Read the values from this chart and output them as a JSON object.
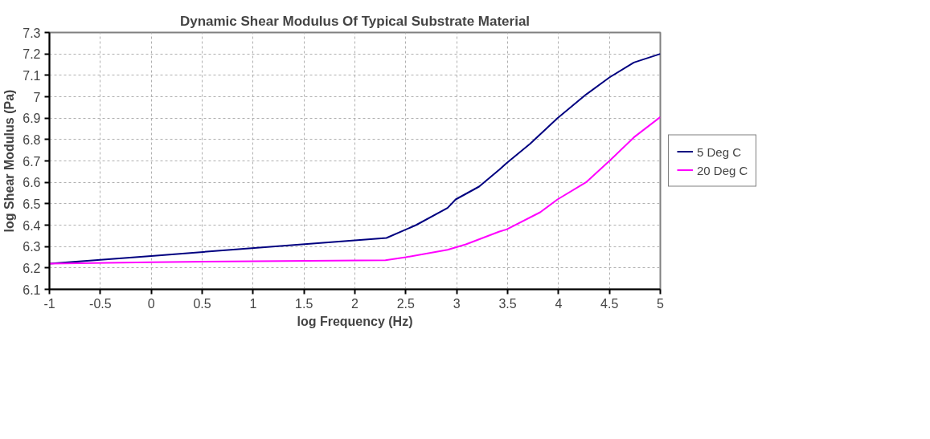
{
  "chart_data": {
    "type": "line",
    "title": "Dynamic Shear Modulus Of Typical Substrate Material",
    "xlabel": "log Frequency (Hz)",
    "ylabel": "log Shear Modulus (Pa)",
    "series": [
      {
        "name": "5 Deg C",
        "color": "#000080",
        "x": [
          -1,
          0,
          2.31,
          2.6,
          2.91,
          2.99,
          3.22,
          3.42,
          3.49,
          3.72,
          3.99,
          4.27,
          4.5,
          4.74,
          5
        ],
        "values": [
          6.22,
          6.256,
          6.34,
          6.4,
          6.48,
          6.52,
          6.58,
          6.66,
          6.69,
          6.78,
          6.9,
          7.01,
          7.09,
          7.16,
          7.2
        ]
      },
      {
        "name": "20 Deg C",
        "color": "#ff00ff",
        "x": [
          -1,
          0,
          2.3,
          2.5,
          2.91,
          3.09,
          3.42,
          3.49,
          3.82,
          3.99,
          4.27,
          4.5,
          4.74,
          5
        ],
        "values": [
          6.22,
          6.227,
          6.236,
          6.25,
          6.285,
          6.31,
          6.37,
          6.38,
          6.46,
          6.52,
          6.6,
          6.7,
          6.81,
          6.905
        ]
      }
    ],
    "xlim": [
      -1,
      5
    ],
    "ylim": [
      6.1,
      7.3
    ],
    "xticks": [
      -1,
      -0.5,
      0,
      0.5,
      1,
      1.5,
      2,
      2.5,
      3,
      3.5,
      4,
      4.5,
      5
    ],
    "yticks": [
      6.1,
      6.2,
      6.3,
      6.4,
      6.5,
      6.6,
      6.7,
      6.8,
      6.9,
      7,
      7.1,
      7.2,
      7.3
    ],
    "grid": true,
    "legend": "right",
    "marker": "none",
    "line_style": "solid"
  }
}
